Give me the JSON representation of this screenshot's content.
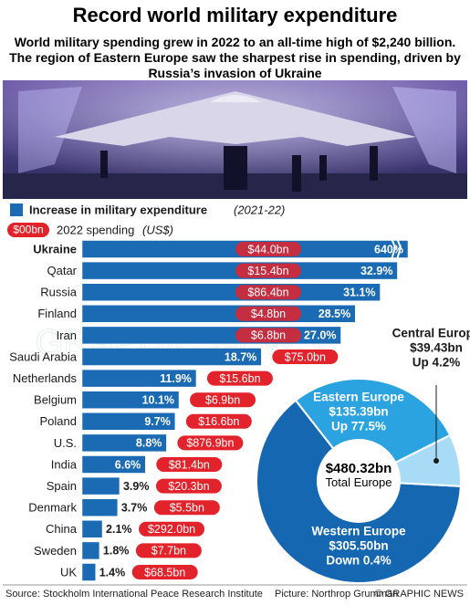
{
  "header": {
    "title": "Record world military expenditure",
    "subtitle": "World military spending grew in 2022 to an all-time high of $2,240 billion. The region of Eastern Europe saw the sharpest rise in spending, driven by Russia’s invasion of Ukraine"
  },
  "watermark": "GRAPHIC NEWS",
  "chart_data": [
    {
      "type": "bar",
      "orientation": "horizontal",
      "categories": [
        "Ukraine",
        "Qatar",
        "Russia",
        "Finland",
        "Iran",
        "Saudi Arabia",
        "Netherlands",
        "Belgium",
        "Poland",
        "U.S.",
        "India",
        "Spain",
        "Denmark",
        "China",
        "Sweden",
        "UK"
      ],
      "xlim": [
        0,
        34
      ],
      "legend_sample": "$00bn",
      "series": [
        {
          "name": "Increase in military expenditure",
          "period": "(2021-22)",
          "color": "#1a6ab4",
          "values": [
            640,
            32.9,
            31.1,
            28.5,
            27.0,
            18.7,
            11.9,
            10.1,
            9.7,
            8.8,
            6.6,
            3.9,
            3.7,
            2.1,
            1.8,
            1.4
          ],
          "value_labels": [
            "640%",
            "32.9%",
            "31.1%",
            "28.5%",
            "27.0%",
            "18.7%",
            "11.9%",
            "10.1%",
            "9.7%",
            "8.8%",
            "6.6%",
            "3.9%",
            "3.7%",
            "2.1%",
            "1.8%",
            "1.4%"
          ]
        },
        {
          "name": "2022 spending",
          "unit": "(US$)",
          "color": "#e3232b",
          "values": [
            44.0,
            15.4,
            86.4,
            4.8,
            6.8,
            75.0,
            15.6,
            6.9,
            16.6,
            876.9,
            81.4,
            20.3,
            5.5,
            292.0,
            7.7,
            68.5
          ],
          "value_labels": [
            "$44.0bn",
            "$15.4bn",
            "$86.4bn",
            "$4.8bn",
            "$6.8bn",
            "$75.0bn",
            "$15.6bn",
            "$6.9bn",
            "$16.6bn",
            "$876.9bn",
            "$81.4bn",
            "$20.3bn",
            "$5.5bn",
            "$292.0bn",
            "$7.7bn",
            "$68.5bn"
          ]
        }
      ]
    },
    {
      "type": "pie",
      "donut": true,
      "categories": [
        "Western Europe",
        "Eastern Europe",
        "Central Europe"
      ],
      "values": [
        305.5,
        135.39,
        39.43
      ],
      "value_labels": [
        "$305.50bn",
        "$135.39bn",
        "$39.43bn"
      ],
      "colors": [
        "#1667b2",
        "#2aa3e0",
        "#a8dcf6"
      ],
      "changes": [
        -0.4,
        77.5,
        4.2
      ],
      "change_labels": [
        "Down 0.4%",
        "Up 77.5%",
        "Up 4.2%"
      ],
      "total": 480.32,
      "total_label": "$480.32bn",
      "total_text": "Total Europe"
    }
  ],
  "footer": {
    "source": "Source: Stockholm International Peace Research Institute",
    "credit": "Picture: Northrop Grumman",
    "copyright": "© GRAPHIC NEWS"
  }
}
